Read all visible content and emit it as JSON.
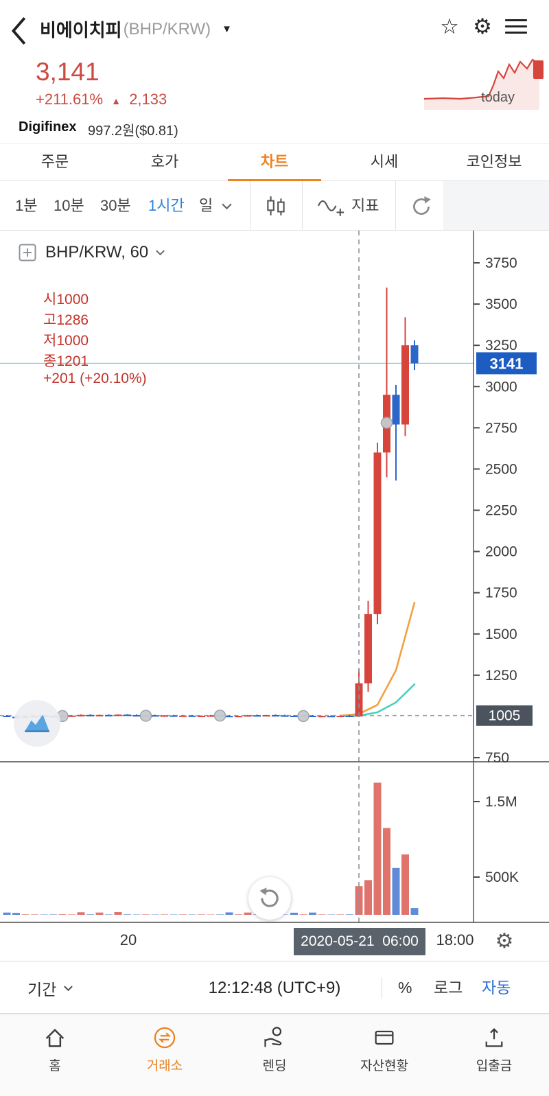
{
  "colors": {
    "up": "#d6453c",
    "down": "#2b66c9",
    "accent_orange": "#ef8221",
    "accent_blue": "#2f80d9",
    "badge_last": "#1d5dc2",
    "badge_base": "#4b535e",
    "ma_orange": "#f2a13f",
    "ma_teal": "#49cfc0"
  },
  "header": {
    "title": "비에이치피",
    "symbol": "(BHP/KRW)",
    "caret": "▼",
    "star_icon": "☆",
    "gear_icon": "⚙"
  },
  "price_summary": {
    "price": "3,141",
    "change_pct": "+211.61%",
    "up_arrow": "▲",
    "change_abs": "2,133"
  },
  "sparkline": {
    "label": "today",
    "points": [
      [
        2,
        62
      ],
      [
        30,
        61
      ],
      [
        55,
        62
      ],
      [
        78,
        60
      ],
      [
        96,
        58
      ],
      [
        103,
        42
      ],
      [
        110,
        22
      ],
      [
        118,
        32
      ],
      [
        126,
        12
      ],
      [
        134,
        24
      ],
      [
        142,
        8
      ],
      [
        152,
        18
      ],
      [
        160,
        5
      ],
      [
        170,
        12
      ]
    ]
  },
  "listing": {
    "exchange": "Digifinex",
    "price": "997.2원($0.81)"
  },
  "tabs": [
    {
      "label": "주문"
    },
    {
      "label": "호가"
    },
    {
      "label": "차트"
    },
    {
      "label": "시세"
    },
    {
      "label": "코인정보"
    }
  ],
  "toolbar": {
    "intervals": [
      {
        "label": "1분"
      },
      {
        "label": "10분"
      },
      {
        "label": "30분"
      },
      {
        "label": "1시간"
      },
      {
        "label": "일"
      }
    ],
    "indicator_label": "지표"
  },
  "chart_header": {
    "symbol_text": "BHP/KRW, 60",
    "ohlc_parts": [
      "시1000",
      "고1286",
      "저1000",
      "종1201",
      "+201 (+20.10%)"
    ]
  },
  "chart_data": {
    "type": "candlestick+volume",
    "symbol": "BHP/KRW",
    "interval_minutes": 60,
    "price_axis": {
      "max": 3750,
      "min": 750,
      "ticks": [
        3750,
        3500,
        3250,
        3000,
        2750,
        2500,
        2250,
        2000,
        1750,
        1500,
        1250,
        750
      ],
      "last_price": 3141,
      "last_badge": "3141",
      "base_price": 1005,
      "base_badge": "1005"
    },
    "volume_axis": {
      "ticks": [
        "1.5M",
        "500K"
      ],
      "tick_values": [
        1500000,
        500000
      ]
    },
    "crosshair_index": 38,
    "candles": [
      [
        1004,
        1008,
        996,
        998,
        30000
      ],
      [
        998,
        1003,
        993,
        996,
        26000
      ],
      [
        996,
        1002,
        994,
        1000,
        6000
      ],
      [
        1000,
        1006,
        997,
        1003,
        5000
      ],
      [
        1003,
        1007,
        999,
        1001,
        4000
      ],
      [
        1001,
        1005,
        996,
        999,
        5000
      ],
      [
        999,
        1004,
        995,
        1002,
        7000
      ],
      [
        1002,
        1008,
        998,
        1005,
        5000
      ],
      [
        1005,
        1012,
        1000,
        1009,
        34000
      ],
      [
        1009,
        1013,
        1003,
        1006,
        6000
      ],
      [
        1006,
        1011,
        1001,
        1009,
        30000
      ],
      [
        1009,
        1012,
        1004,
        1007,
        5000
      ],
      [
        1007,
        1013,
        1002,
        1011,
        36000
      ],
      [
        1011,
        1014,
        1005,
        1008,
        6000
      ],
      [
        1008,
        1012,
        1003,
        1005,
        4000
      ],
      [
        1005,
        1009,
        1000,
        1007,
        5000
      ],
      [
        1007,
        1010,
        1001,
        1004,
        4000
      ],
      [
        1004,
        1008,
        999,
        1006,
        5000
      ],
      [
        1006,
        1009,
        1000,
        1003,
        4000
      ],
      [
        1003,
        1007,
        998,
        1005,
        5000
      ],
      [
        1005,
        1008,
        999,
        1002,
        4000
      ],
      [
        1002,
        1006,
        997,
        1004,
        5000
      ],
      [
        1004,
        1009,
        999,
        1006,
        4000
      ],
      [
        1006,
        1010,
        1000,
        1003,
        5000
      ],
      [
        1003,
        1007,
        997,
        1000,
        32000
      ],
      [
        1000,
        1005,
        996,
        1003,
        6000
      ],
      [
        1003,
        1009,
        999,
        1007,
        30000
      ],
      [
        1007,
        1011,
        1002,
        1005,
        5000
      ],
      [
        1005,
        1009,
        1000,
        1008,
        4000
      ],
      [
        1008,
        1012,
        1003,
        1006,
        5000
      ],
      [
        1006,
        1010,
        1001,
        1004,
        4000
      ],
      [
        1004,
        1008,
        998,
        1001,
        28000
      ],
      [
        1001,
        1006,
        996,
        1004,
        6000
      ],
      [
        1004,
        1008,
        998,
        1000,
        30000
      ],
      [
        1000,
        1005,
        995,
        1003,
        5000
      ],
      [
        1003,
        1007,
        998,
        1001,
        4000
      ],
      [
        1001,
        1006,
        996,
        1004,
        5000
      ],
      [
        1004,
        1009,
        999,
        1002,
        6000
      ],
      [
        1000,
        1286,
        995,
        1201,
        380000
      ],
      [
        1201,
        1700,
        1150,
        1620,
        460000
      ],
      [
        1620,
        2660,
        1560,
        2600,
        1750000
      ],
      [
        2600,
        3600,
        2450,
        2950,
        1150000
      ],
      [
        2950,
        3010,
        2430,
        2770,
        620000
      ],
      [
        2770,
        3420,
        2700,
        3250,
        800000
      ],
      [
        3250,
        3280,
        3100,
        3141,
        90000
      ]
    ],
    "ma_lines": [
      {
        "name": "ma-fast",
        "color": "#f2a13f",
        "points": [
          [
            36,
            1004
          ],
          [
            38,
            1015
          ],
          [
            40,
            1070
          ],
          [
            42,
            1280
          ],
          [
            44,
            1690
          ]
        ]
      },
      {
        "name": "ma-slow",
        "color": "#49cfc0",
        "points": [
          [
            36,
            1000
          ],
          [
            38,
            1004
          ],
          [
            40,
            1025
          ],
          [
            42,
            1085
          ],
          [
            44,
            1195
          ]
        ]
      }
    ],
    "markers": [
      [
        6,
        1002
      ],
      [
        15,
        1004
      ],
      [
        23,
        1005
      ],
      [
        32,
        1002
      ],
      [
        41,
        2780
      ]
    ]
  },
  "xaxis": {
    "left_label": "20",
    "tooltip": "2020-05-21  06:00",
    "right_label": "18:00",
    "gear_icon": "⚙"
  },
  "statusbar": {
    "period_label": "기간",
    "clock": "12:12:48 (UTC+9)",
    "percent_label": "%",
    "log_label": "로그",
    "auto_label": "자동"
  },
  "bottom_nav": [
    {
      "label": "홈"
    },
    {
      "label": "거래소"
    },
    {
      "label": "렌딩"
    },
    {
      "label": "자산현황"
    },
    {
      "label": "입출금"
    }
  ]
}
